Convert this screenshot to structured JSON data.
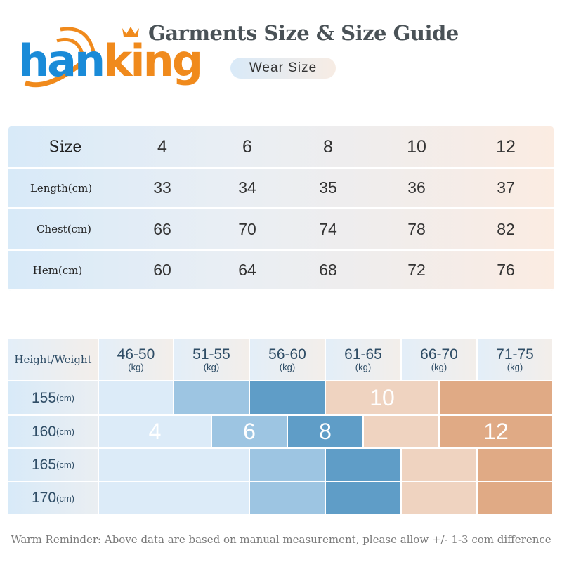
{
  "logo": {
    "text_part1": "han",
    "text_part2": "king"
  },
  "header": {
    "title": "Garments Size & Size Guide",
    "subtitle": "Wear  Size"
  },
  "size_table": {
    "rows": [
      {
        "label": "Size",
        "values": [
          "4",
          "6",
          "8",
          "10",
          "12"
        ]
      },
      {
        "label": "Length(cm)",
        "values": [
          "33",
          "34",
          "35",
          "36",
          "37"
        ]
      },
      {
        "label": "Chest(cm)",
        "values": [
          "66",
          "70",
          "74",
          "78",
          "82"
        ]
      },
      {
        "label": "Hem(cm)",
        "values": [
          "60",
          "64",
          "68",
          "72",
          "76"
        ]
      }
    ]
  },
  "guide_table": {
    "corner": "Height/Weight",
    "weights": [
      {
        "range": "46-50",
        "unit": "(kg)"
      },
      {
        "range": "51-55",
        "unit": "(kg)"
      },
      {
        "range": "56-60",
        "unit": "(kg)"
      },
      {
        "range": "61-65",
        "unit": "(kg)"
      },
      {
        "range": "66-70",
        "unit": "(kg)"
      },
      {
        "range": "71-75",
        "unit": "(kg)"
      }
    ],
    "heights": [
      {
        "value": "155",
        "unit": "(cm)"
      },
      {
        "value": "160",
        "unit": "(cm)"
      },
      {
        "value": "165",
        "unit": "(cm)"
      },
      {
        "value": "170",
        "unit": "(cm)"
      }
    ],
    "size_labels": {
      "s4": "4",
      "s6": "6",
      "s8": "8",
      "s10": "10",
      "s12": "12"
    },
    "colors": {
      "s4": "#dcebf8",
      "s6": "#9dc5e2",
      "s8": "#5f9dc7",
      "s10": "#efd3c0",
      "s12": "#e0aa85"
    }
  },
  "footer": {
    "note": "Warm Reminder: Above data are based on manual measurement, please allow +/- 1-3 com difference"
  }
}
